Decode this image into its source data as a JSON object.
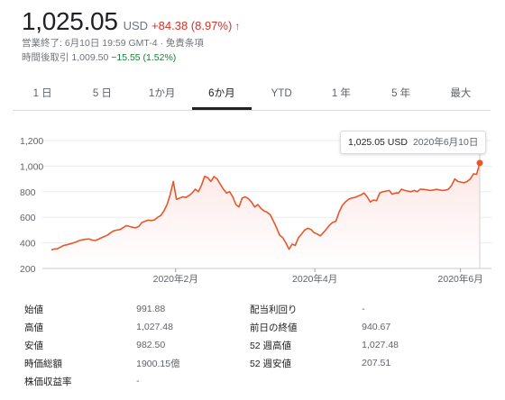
{
  "quote": {
    "price": "1,025.05",
    "currency": "USD",
    "change": "+84.38 (8.97%)",
    "up_color": "#d93025",
    "status_line": "営業終了: 6月10日 19:59 GMT-4 · 免責条項",
    "after_hours_label": "時間後取引",
    "after_hours_price": "1,009.50",
    "after_hours_change": "−15.55 (1.52%)"
  },
  "tabs": [
    "1 日",
    "5 日",
    "1か月",
    "6か月",
    "YTD",
    "1 年",
    "5 年",
    "最大"
  ],
  "active_tab": "6か月",
  "tooltip": {
    "price": "1,025.05 USD",
    "date": "2020年6月10日"
  },
  "chart_data": {
    "type": "line",
    "series": [
      {
        "values": [
          345,
          352,
          355,
          368,
          380,
          385,
          392,
          400,
          408,
          418,
          425,
          428,
          430,
          422,
          418,
          428,
          440,
          450,
          462,
          480,
          495,
          500,
          505,
          520,
          535,
          528,
          522,
          518,
          530,
          560,
          570,
          578,
          575,
          580,
          600,
          615,
          650,
          700,
          780,
          880,
          740,
          750,
          760,
          755,
          770,
          790,
          820,
          800,
          850,
          920,
          910,
          880,
          918,
          900,
          860,
          820,
          790,
          800,
          760,
          700,
          680,
          750,
          760,
          745,
          720,
          680,
          700,
          670,
          650,
          640,
          620,
          570,
          520,
          460,
          440,
          400,
          350,
          390,
          380,
          440,
          470,
          500,
          515,
          505,
          480,
          470,
          455,
          480,
          510,
          540,
          560,
          570,
          640,
          690,
          720,
          740,
          750,
          755,
          765,
          775,
          790,
          760,
          720,
          735,
          730,
          790,
          800,
          805,
          810,
          780,
          790,
          790,
          820,
          810,
          805,
          800,
          810,
          800,
          820,
          818,
          815,
          810,
          812,
          818,
          815,
          810,
          812,
          820,
          850,
          900,
          880,
          875,
          870,
          880,
          900,
          940,
          935,
          1025
        ]
      }
    ],
    "y_ticks": [
      "200",
      "400",
      "600",
      "800",
      "1,000",
      "1,200"
    ],
    "x_ticks": [
      "2020年2月",
      "2020年4月",
      "2020年6月"
    ],
    "ylim": [
      200,
      1200
    ],
    "line_color": "#e8562a",
    "area_color": "#fce8e6",
    "grid": true
  },
  "stats": [
    [
      {
        "label": "始値",
        "value": "991.88"
      },
      {
        "label": "配当利回り",
        "value": "-"
      }
    ],
    [
      {
        "label": "高値",
        "value": "1,027.48"
      },
      {
        "label": "前日の終値",
        "value": "940.67"
      }
    ],
    [
      {
        "label": "安値",
        "value": "982.50"
      },
      {
        "label": "52 週高値",
        "value": "1,027.48"
      }
    ],
    [
      {
        "label": "時価総額",
        "value": "1900.15億"
      },
      {
        "label": "52 週安値",
        "value": "207.51"
      }
    ],
    [
      {
        "label": "株価収益率",
        "value": "-"
      },
      {
        "label": "",
        "value": ""
      }
    ]
  ]
}
